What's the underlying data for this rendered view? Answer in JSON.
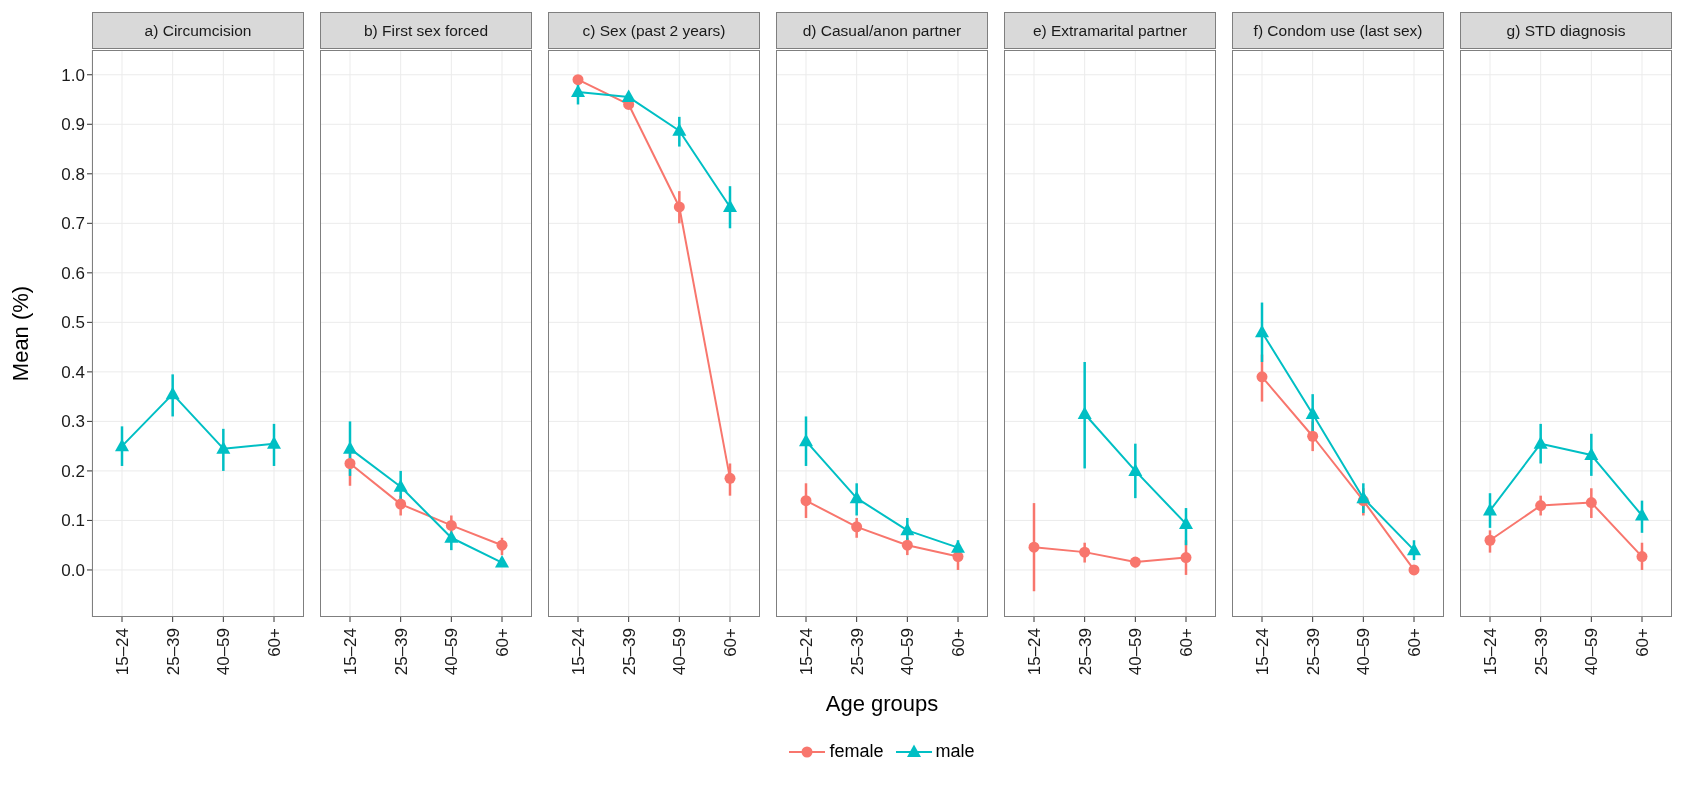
{
  "chart_data": [
    {
      "type": "line",
      "title": "a) Circumcision",
      "ylabel": "Mean (%)",
      "categories": [
        "15–24",
        "25–39",
        "40–59",
        "60+"
      ],
      "ylim": [
        -0.095,
        1.05
      ],
      "yticks": [
        {
          "value": 0,
          "label": "0.0"
        },
        {
          "value": 0.1,
          "label": "0.1"
        },
        {
          "value": 0.2,
          "label": "0.2"
        },
        {
          "value": 0.3,
          "label": "0.3"
        },
        {
          "value": 0.4,
          "label": "0.4"
        },
        {
          "value": 0.5,
          "label": "0.5"
        },
        {
          "value": 0.6,
          "label": "0.6"
        },
        {
          "value": 0.7,
          "label": "0.7"
        },
        {
          "value": 0.8,
          "label": "0.8"
        },
        {
          "value": 0.9,
          "label": "0.9"
        },
        {
          "value": 1,
          "label": "1.0"
        }
      ],
      "grid": true,
      "series": [
        {
          "color": "#00bfc4",
          "marker": "triangle",
          "values": [
            0.25,
            0.355,
            0.245,
            0.255
          ],
          "errors": [
            [
              0.21,
              0.29
            ],
            [
              0.31,
              0.395
            ],
            [
              0.2,
              0.285
            ],
            [
              0.21,
              0.295
            ]
          ]
        }
      ]
    },
    {
      "type": "line",
      "title": "b) First sex forced",
      "categories": [
        "15–24",
        "25–39",
        "40–59",
        "60+"
      ],
      "ylim": [
        -0.095,
        1.05
      ],
      "yticks": [
        0,
        0.1,
        0.2,
        0.3,
        0.4,
        0.5,
        0.6,
        0.7,
        0.8,
        0.9,
        1
      ],
      "grid": true,
      "tick_labels": "x",
      "series": [
        {
          "color": "#f8766d",
          "marker": "circle",
          "values": [
            0.215,
            0.133,
            0.09,
            0.05
          ],
          "errors": [
            [
              0.17,
              0.25
            ],
            [
              0.11,
              0.15
            ],
            [
              0.07,
              0.11
            ],
            [
              0.03,
              0.065
            ]
          ]
        },
        {
          "color": "#00bfc4",
          "marker": "triangle",
          "values": [
            0.245,
            0.168,
            0.065,
            0.015
          ],
          "errors": [
            [
              0.19,
              0.3
            ],
            [
              0.14,
              0.2
            ],
            [
              0.04,
              0.065
            ],
            null
          ]
        }
      ]
    },
    {
      "type": "line",
      "title": "c) Sex (past 2 years)",
      "categories": [
        "15–24",
        "25–39",
        "40–59",
        "60+"
      ],
      "ylim": [
        -0.095,
        1.05
      ],
      "yticks": [
        0,
        0.1,
        0.2,
        0.3,
        0.4,
        0.5,
        0.6,
        0.7,
        0.8,
        0.9,
        1
      ],
      "grid": true,
      "tick_labels": "x",
      "series": [
        {
          "color": "#f8766d",
          "marker": "circle",
          "values": [
            0.99,
            0.94,
            0.733,
            0.185
          ],
          "errors": [
            null,
            null,
            [
              0.7,
              0.765
            ],
            [
              0.15,
              0.215
            ]
          ]
        },
        {
          "color": "#00bfc4",
          "marker": "triangle",
          "values": [
            0.965,
            0.955,
            0.887,
            0.733
          ],
          "errors": [
            [
              0.94,
              0.985
            ],
            null,
            [
              0.855,
              0.915
            ],
            [
              0.69,
              0.775
            ]
          ]
        }
      ]
    },
    {
      "type": "line",
      "title": "d) Casual/anon partner",
      "xlabel": "Age groups",
      "legend": "bottom",
      "categories": [
        "15–24",
        "25–39",
        "40–59",
        "60+"
      ],
      "ylim": [
        -0.095,
        1.05
      ],
      "yticks": [
        0,
        0.1,
        0.2,
        0.3,
        0.4,
        0.5,
        0.6,
        0.7,
        0.8,
        0.9,
        1
      ],
      "grid": true,
      "tick_labels": "x",
      "series": [
        {
          "name": "female",
          "color": "#f8766d",
          "marker": "circle",
          "values": [
            0.14,
            0.087,
            0.05,
            0.027
          ],
          "errors": [
            [
              0.105,
              0.175
            ],
            [
              0.065,
              0.105
            ],
            [
              0.03,
              0.065
            ],
            [
              0.0,
              0.045
            ]
          ]
        },
        {
          "name": "male",
          "color": "#00bfc4",
          "marker": "triangle",
          "values": [
            0.26,
            0.145,
            0.08,
            0.045
          ],
          "errors": [
            [
              0.21,
              0.31
            ],
            [
              0.11,
              0.175
            ],
            [
              0.06,
              0.105
            ],
            [
              0.035,
              0.06
            ]
          ]
        }
      ]
    },
    {
      "type": "line",
      "title": "e) Extramarital partner",
      "categories": [
        "15–24",
        "25–39",
        "40–59",
        "60+"
      ],
      "ylim": [
        -0.095,
        1.05
      ],
      "yticks": [
        0,
        0.1,
        0.2,
        0.3,
        0.4,
        0.5,
        0.6,
        0.7,
        0.8,
        0.9,
        1
      ],
      "grid": true,
      "tick_labels": "x",
      "series": [
        {
          "color": "#f8766d",
          "marker": "circle",
          "values": [
            0.046,
            0.036,
            0.016,
            0.025
          ],
          "errors": [
            [
              -0.043,
              0.135
            ],
            [
              0.015,
              0.055
            ],
            [
              0.005,
              0.025
            ],
            [
              -0.01,
              0.06
            ]
          ]
        },
        {
          "color": "#00bfc4",
          "marker": "triangle",
          "values": [
            null,
            0.315,
            0.2,
            0.093
          ],
          "errors": [
            null,
            [
              0.205,
              0.42
            ],
            [
              0.145,
              0.255
            ],
            [
              0.05,
              0.125
            ]
          ]
        }
      ]
    },
    {
      "type": "line",
      "title": "f) Condom use (last sex)",
      "categories": [
        "15–24",
        "25–39",
        "40–59",
        "60+"
      ],
      "ylim": [
        -0.095,
        1.05
      ],
      "yticks": [
        0,
        0.1,
        0.2,
        0.3,
        0.4,
        0.5,
        0.6,
        0.7,
        0.8,
        0.9,
        1
      ],
      "grid": true,
      "tick_labels": "x",
      "series": [
        {
          "color": "#f8766d",
          "marker": "circle",
          "values": [
            0.39,
            0.27,
            0.14,
            0.0
          ],
          "errors": [
            [
              0.34,
              0.435
            ],
            [
              0.24,
              0.3
            ],
            [
              0.11,
              0.165
            ],
            null
          ]
        },
        {
          "color": "#00bfc4",
          "marker": "triangle",
          "values": [
            0.48,
            0.315,
            0.145,
            0.04
          ],
          "errors": [
            [
              0.42,
              0.54
            ],
            [
              0.275,
              0.355
            ],
            [
              0.115,
              0.175
            ],
            [
              0.02,
              0.06
            ]
          ]
        }
      ]
    },
    {
      "type": "line",
      "title": "g) STD diagnosis",
      "categories": [
        "15–24",
        "25–39",
        "40–59",
        "60+"
      ],
      "ylim": [
        -0.095,
        1.05
      ],
      "yticks": [
        0,
        0.1,
        0.2,
        0.3,
        0.4,
        0.5,
        0.6,
        0.7,
        0.8,
        0.9,
        1
      ],
      "grid": true,
      "tick_labels": "x",
      "series": [
        {
          "color": "#f8766d",
          "marker": "circle",
          "values": [
            0.06,
            0.13,
            0.136,
            0.027
          ],
          "errors": [
            [
              0.035,
              0.08
            ],
            [
              0.11,
              0.15
            ],
            [
              0.105,
              0.165
            ],
            [
              0.0,
              0.055
            ]
          ]
        },
        {
          "color": "#00bfc4",
          "marker": "triangle",
          "values": [
            0.12,
            0.255,
            0.232,
            0.11
          ],
          "errors": [
            [
              0.085,
              0.155
            ],
            [
              0.215,
              0.295
            ],
            [
              0.19,
              0.275
            ],
            [
              0.075,
              0.14
            ]
          ]
        }
      ]
    }
  ]
}
